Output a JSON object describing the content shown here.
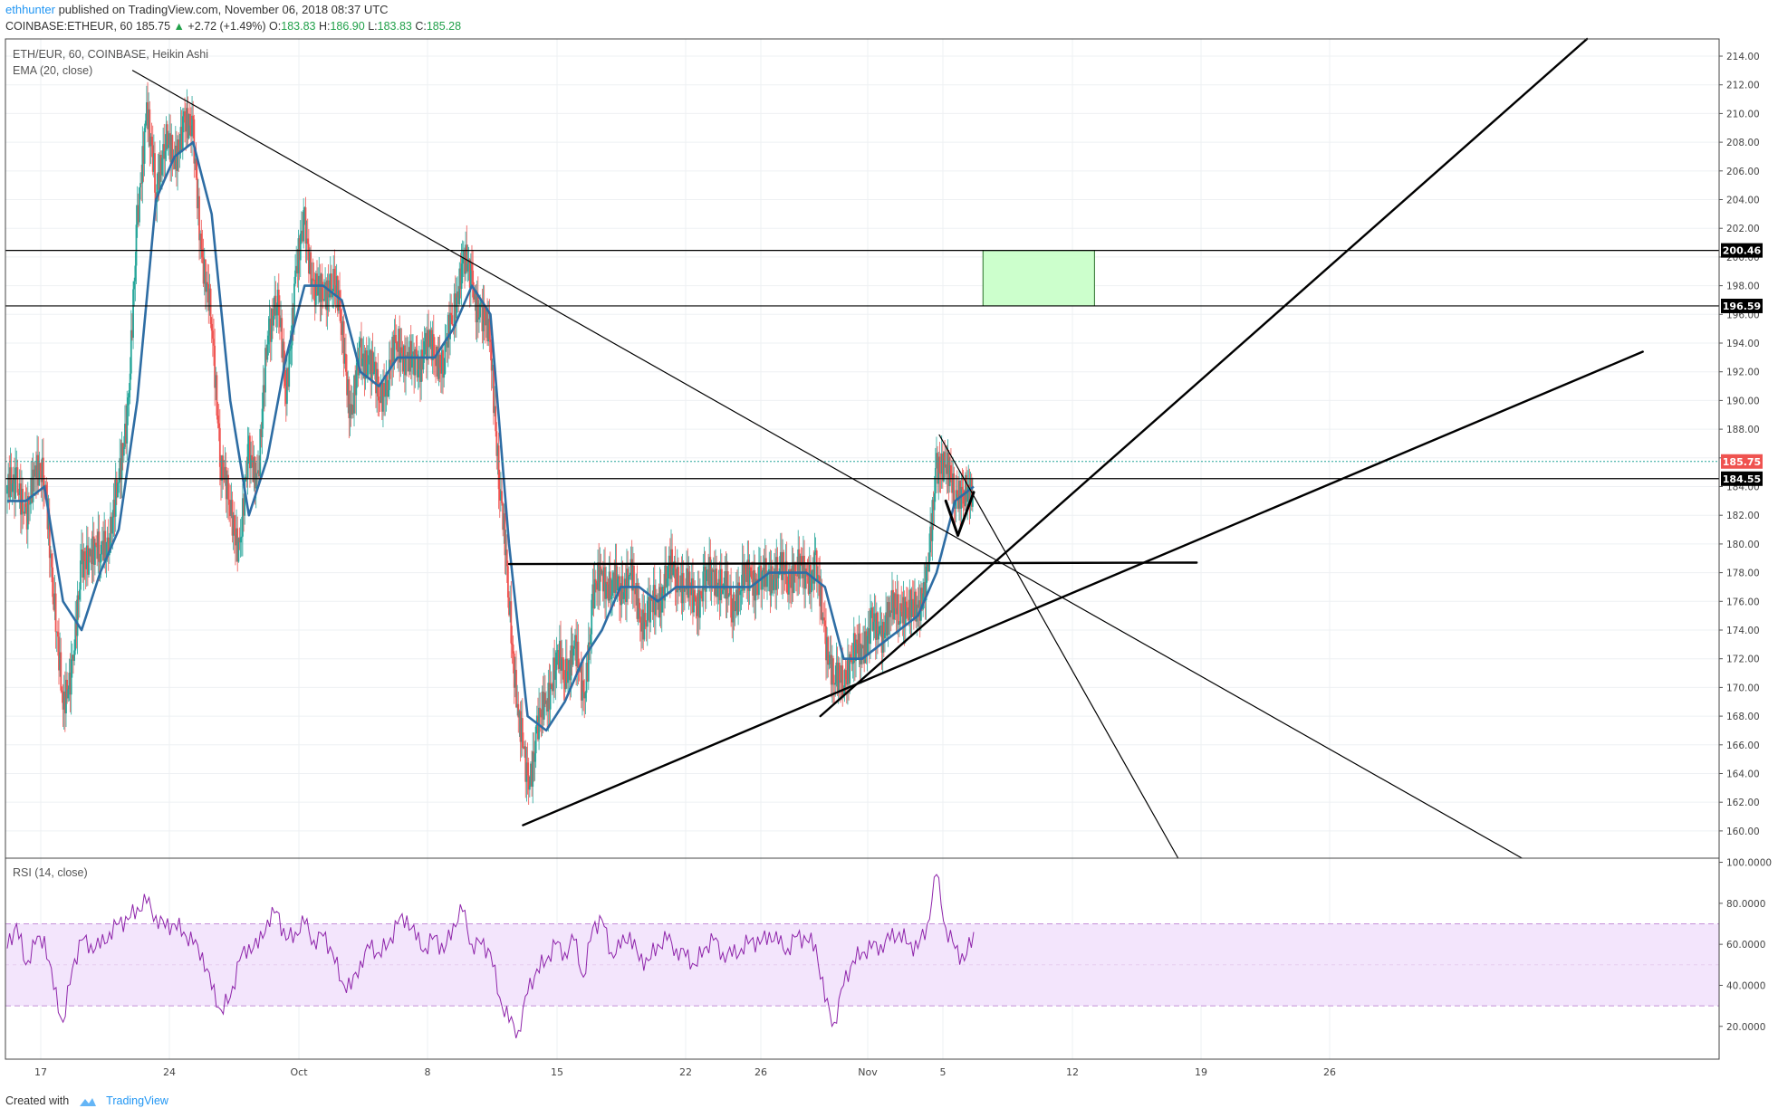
{
  "header": {
    "author": "ethhunter",
    "published_text": "published on TradingView.com, November 06, 2018 08:37 UTC"
  },
  "quote": {
    "symbol": "COINBASE:ETHEUR, 60",
    "last": "185.75",
    "change": "+2.72 (+1.49%)",
    "open_label": "O:",
    "open": "183.83",
    "high_label": "H:",
    "high": "186.90",
    "low_label": "L:",
    "low": "183.83",
    "close_label": "C:",
    "close": "185.28"
  },
  "legend": {
    "main": "ETH/EUR, 60, COINBASE, Heikin Ashi",
    "ema": "EMA (20, close)",
    "rsi": "RSI (14, close)"
  },
  "footer": {
    "created_with": "Created with",
    "brand": "TradingView"
  },
  "colors": {
    "bull": "#26a69a",
    "bear": "#ef5350",
    "ema": "#2e6da4",
    "rsi": "#8e24aa",
    "rsi_band": "#f3e5fc",
    "zone": "#ccffcc",
    "last_price": "#ef5350",
    "tag_bg": "#000000"
  },
  "chart_data": [
    {
      "type": "candlestick",
      "title": "ETH/EUR, 60, COINBASE, Heikin Ashi",
      "x_ticks": [
        "17",
        "24",
        "Oct",
        "8",
        "15",
        "22",
        "26",
        "Nov",
        "5",
        "12",
        "19",
        "26"
      ],
      "y_ticks": [
        "160.00",
        "162.00",
        "164.00",
        "166.00",
        "168.00",
        "170.00",
        "172.00",
        "174.00",
        "176.00",
        "178.00",
        "180.00",
        "182.00",
        "184.00",
        "186.00",
        "188.00",
        "190.00",
        "192.00",
        "194.00",
        "196.00",
        "198.00",
        "200.00",
        "202.00",
        "204.00",
        "206.00",
        "208.00",
        "210.00",
        "212.00",
        "214.00"
      ],
      "ylim": [
        158.1,
        215.2
      ],
      "price_tags": [
        {
          "label": "200.46",
          "value": 200.46,
          "color": "#000000"
        },
        {
          "label": "196.59",
          "value": 196.59,
          "color": "#000000"
        },
        {
          "label": "185.75",
          "value": 185.75,
          "color": "#ef5350"
        },
        {
          "label": "184.55",
          "value": 184.55,
          "color": "#000000"
        }
      ],
      "price_path": [
        [
          0,
          183.5
        ],
        [
          1,
          185
        ],
        [
          2,
          181
        ],
        [
          3,
          186
        ],
        [
          4,
          184
        ],
        [
          5,
          177
        ],
        [
          6,
          168
        ],
        [
          7,
          172
        ],
        [
          8,
          178
        ],
        [
          9,
          180
        ],
        [
          10,
          179
        ],
        [
          11,
          181
        ],
        [
          12,
          184
        ],
        [
          13,
          190
        ],
        [
          14,
          202
        ],
        [
          15,
          211
        ],
        [
          16,
          204
        ],
        [
          17,
          209
        ],
        [
          18,
          206
        ],
        [
          19,
          210
        ],
        [
          20,
          208
        ],
        [
          21,
          200
        ],
        [
          22,
          195
        ],
        [
          23,
          186
        ],
        [
          24,
          182
        ],
        [
          25,
          180
        ],
        [
          26,
          186
        ],
        [
          27,
          185
        ],
        [
          28,
          194
        ],
        [
          29,
          198
        ],
        [
          30,
          190
        ],
        [
          31,
          199
        ],
        [
          32,
          202
        ],
        [
          33,
          198
        ],
        [
          34,
          197
        ],
        [
          35,
          199
        ],
        [
          36,
          195
        ],
        [
          37,
          189
        ],
        [
          38,
          193
        ],
        [
          39,
          193
        ],
        [
          40,
          190
        ],
        [
          41,
          192
        ],
        [
          42,
          194
        ],
        [
          43,
          193
        ],
        [
          44,
          192
        ],
        [
          45,
          194
        ],
        [
          46,
          193
        ],
        [
          47,
          193
        ],
        [
          48,
          196
        ],
        [
          49,
          200
        ],
        [
          50,
          198
        ],
        [
          51,
          196
        ],
        [
          52,
          194
        ],
        [
          53,
          184
        ],
        [
          54,
          176
        ],
        [
          55,
          168
        ],
        [
          56,
          163
        ],
        [
          57,
          167
        ],
        [
          58,
          169
        ],
        [
          59,
          172
        ],
        [
          60,
          171
        ],
        [
          61,
          173
        ],
        [
          62,
          169
        ],
        [
          63,
          176
        ],
        [
          64,
          178
        ],
        [
          65,
          177
        ],
        [
          66,
          177
        ],
        [
          67,
          178
        ],
        [
          68,
          175
        ],
        [
          69,
          175
        ],
        [
          70,
          176
        ],
        [
          71,
          178
        ],
        [
          72,
          178
        ],
        [
          73,
          177
        ],
        [
          74,
          176
        ],
        [
          75,
          177
        ],
        [
          76,
          178
        ],
        [
          77,
          177
        ],
        [
          78,
          176
        ],
        [
          79,
          177
        ],
        [
          80,
          178
        ],
        [
          81,
          177
        ],
        [
          82,
          178
        ],
        [
          83,
          178
        ],
        [
          84,
          178
        ],
        [
          85,
          178
        ],
        [
          86,
          178
        ],
        [
          87,
          178
        ],
        [
          88,
          174
        ],
        [
          89,
          170
        ],
        [
          90,
          171
        ],
        [
          91,
          172
        ],
        [
          92,
          173
        ],
        [
          93,
          174
        ],
        [
          94,
          174
        ],
        [
          95,
          175
        ],
        [
          96,
          176
        ],
        [
          97,
          175
        ],
        [
          98,
          176
        ],
        [
          99,
          177
        ],
        [
          100,
          186
        ],
        [
          101,
          185
        ],
        [
          102,
          184
        ],
        [
          103,
          183
        ],
        [
          104,
          184
        ]
      ],
      "ema_path": [
        [
          0,
          183
        ],
        [
          2,
          183
        ],
        [
          4,
          184
        ],
        [
          6,
          176
        ],
        [
          8,
          174
        ],
        [
          10,
          178
        ],
        [
          12,
          181
        ],
        [
          14,
          190
        ],
        [
          16,
          204
        ],
        [
          18,
          207
        ],
        [
          20,
          208
        ],
        [
          22,
          203
        ],
        [
          24,
          190
        ],
        [
          26,
          182
        ],
        [
          28,
          186
        ],
        [
          30,
          193
        ],
        [
          32,
          198
        ],
        [
          34,
          198
        ],
        [
          36,
          197
        ],
        [
          38,
          192
        ],
        [
          40,
          191
        ],
        [
          42,
          193
        ],
        [
          44,
          193
        ],
        [
          46,
          193
        ],
        [
          48,
          195
        ],
        [
          50,
          198
        ],
        [
          52,
          196
        ],
        [
          54,
          180
        ],
        [
          56,
          168
        ],
        [
          58,
          167
        ],
        [
          60,
          169
        ],
        [
          62,
          172
        ],
        [
          64,
          174
        ],
        [
          66,
          177
        ],
        [
          68,
          177
        ],
        [
          70,
          176
        ],
        [
          72,
          177
        ],
        [
          74,
          177
        ],
        [
          76,
          177
        ],
        [
          78,
          177
        ],
        [
          80,
          177
        ],
        [
          82,
          178
        ],
        [
          84,
          178
        ],
        [
          86,
          178
        ],
        [
          88,
          177
        ],
        [
          90,
          172
        ],
        [
          92,
          172
        ],
        [
          94,
          173
        ],
        [
          96,
          174
        ],
        [
          98,
          175
        ],
        [
          100,
          178
        ],
        [
          102,
          183
        ],
        [
          104,
          184
        ]
      ],
      "horizontal_levels": [
        200.46,
        196.59,
        184.55
      ],
      "zone": {
        "x_index": [
          105,
          117
        ],
        "y_range": [
          196.59,
          200.46
        ]
      }
    },
    {
      "type": "line",
      "title": "RSI (14, close)",
      "y_ticks": [
        "20.0000",
        "40.0000",
        "60.0000",
        "80.0000",
        "100.0000"
      ],
      "ylim": [
        4,
        102
      ],
      "band": [
        30,
        70
      ],
      "values": [
        58,
        70,
        50,
        60,
        64,
        38,
        22,
        48,
        62,
        60,
        58,
        66,
        70,
        72,
        78,
        80,
        74,
        68,
        70,
        66,
        60,
        56,
        38,
        28,
        34,
        52,
        60,
        58,
        72,
        76,
        62,
        66,
        70,
        62,
        64,
        56,
        42,
        38,
        52,
        58,
        56,
        60,
        70,
        74,
        62,
        58,
        64,
        56,
        70,
        76,
        60,
        60,
        56,
        34,
        22,
        18,
        36,
        48,
        52,
        60,
        56,
        62,
        44,
        68,
        72,
        56,
        58,
        66,
        52,
        52,
        60,
        62,
        58,
        54,
        50,
        58,
        62,
        56,
        54,
        58,
        62,
        60,
        66,
        60,
        58,
        64,
        62,
        60,
        32,
        22,
        40,
        52,
        56,
        58,
        60,
        62,
        66,
        60,
        58,
        70,
        94,
        68,
        58,
        52,
        66
      ]
    }
  ]
}
